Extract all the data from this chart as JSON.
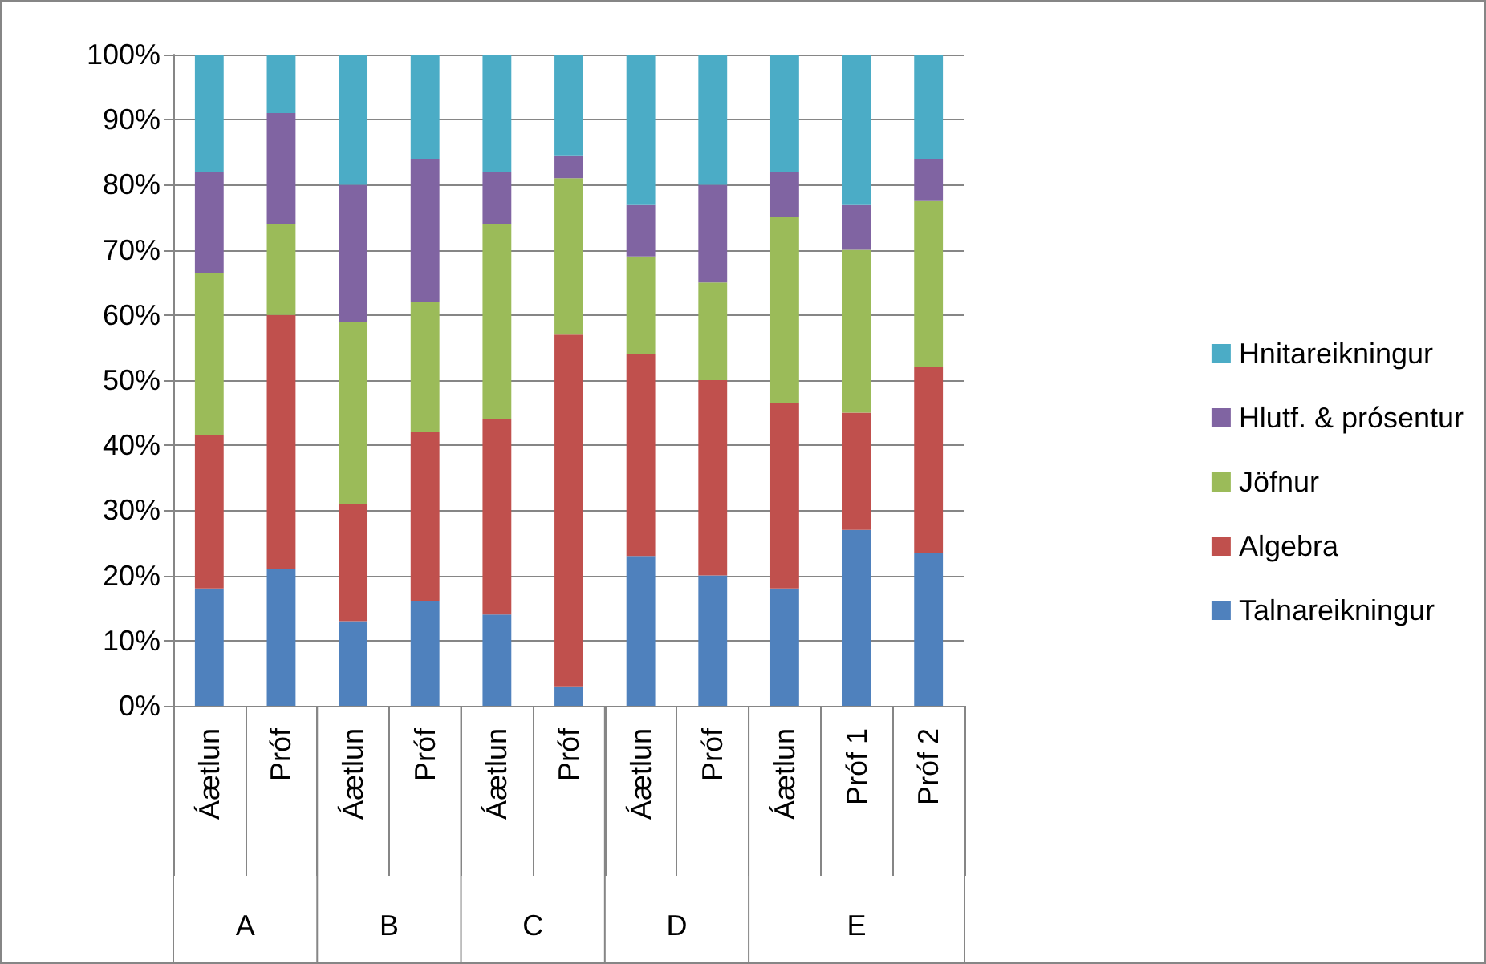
{
  "chart_data": {
    "type": "bar",
    "stacked": true,
    "categories": [
      "Áætlun",
      "Próf",
      "Áætlun",
      "Próf",
      "Áætlun",
      "Próf",
      "Áætlun",
      "Próf",
      "Áætlun",
      "Próf 1",
      "Próf 2"
    ],
    "annotations": [
      "A",
      "B",
      "C",
      "D",
      "E"
    ],
    "series": [
      {
        "name": "Talnareikningur",
        "color": "#4f81bd",
        "values": [
          18,
          21,
          13,
          16,
          14,
          3,
          23,
          20,
          18,
          27,
          23.5
        ]
      },
      {
        "name": "Algebra",
        "color": "#c0504d",
        "values": [
          23.5,
          39,
          18,
          26,
          30,
          54,
          31,
          30,
          28.5,
          18,
          28.5
        ]
      },
      {
        "name": "Jöfnur",
        "color": "#9bbb59",
        "values": [
          25,
          14,
          28,
          20,
          30,
          24,
          15,
          15,
          28.5,
          25,
          25.5
        ]
      },
      {
        "name": "Hlutf. & prósentur",
        "color": "#8064a2",
        "values": [
          15.5,
          17,
          21,
          22,
          8,
          3.5,
          8,
          15,
          7,
          7,
          6.5
        ]
      },
      {
        "name": "Hnitareikningur",
        "color": "#4bacc6",
        "values": [
          18,
          9,
          20,
          16,
          18,
          15.5,
          23,
          20,
          18,
          23,
          16
        ]
      }
    ],
    "ylim": [
      0,
      100
    ],
    "yticks": [
      {
        "value": 0,
        "label": "0%"
      },
      {
        "value": 10,
        "label": "10%"
      },
      {
        "value": 20,
        "label": "20%"
      },
      {
        "value": 30,
        "label": "30%"
      },
      {
        "value": 40,
        "label": "40%"
      },
      {
        "value": 50,
        "label": "50%"
      },
      {
        "value": 60,
        "label": "60%"
      },
      {
        "value": 70,
        "label": "70%"
      },
      {
        "value": 80,
        "label": "80%"
      },
      {
        "value": 90,
        "label": "90%"
      },
      {
        "value": 100,
        "label": "100%"
      }
    ],
    "grid": "y",
    "legend": "right"
  }
}
